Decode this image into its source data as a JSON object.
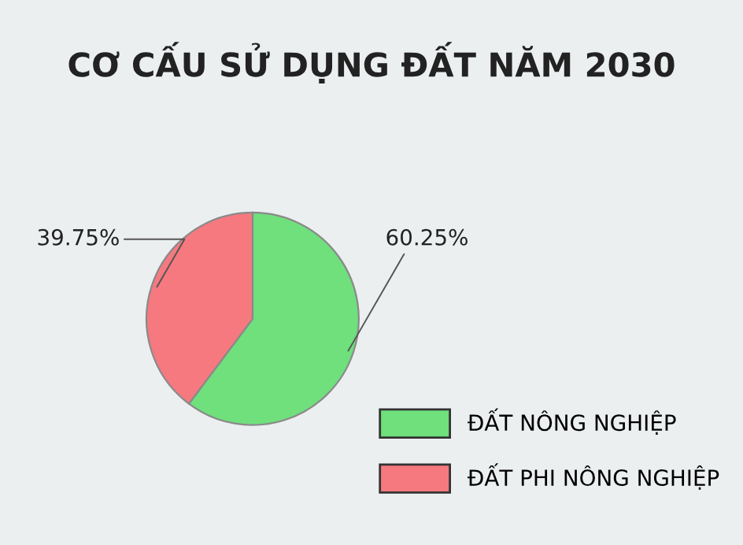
{
  "chart_data": {
    "type": "pie",
    "title": "CƠ CẤU SỬ DỤNG ĐẤT NĂM 2030",
    "categories": [
      "ĐẤT NÔNG NGHIỆP",
      "ĐẤT PHI NÔNG NGHIỆP"
    ],
    "values": [
      60.25,
      39.75
    ],
    "value_labels": [
      "60.25%",
      "39.75%"
    ],
    "colors": [
      "#6fe07c",
      "#f5797f"
    ],
    "legend": "bottom right"
  }
}
